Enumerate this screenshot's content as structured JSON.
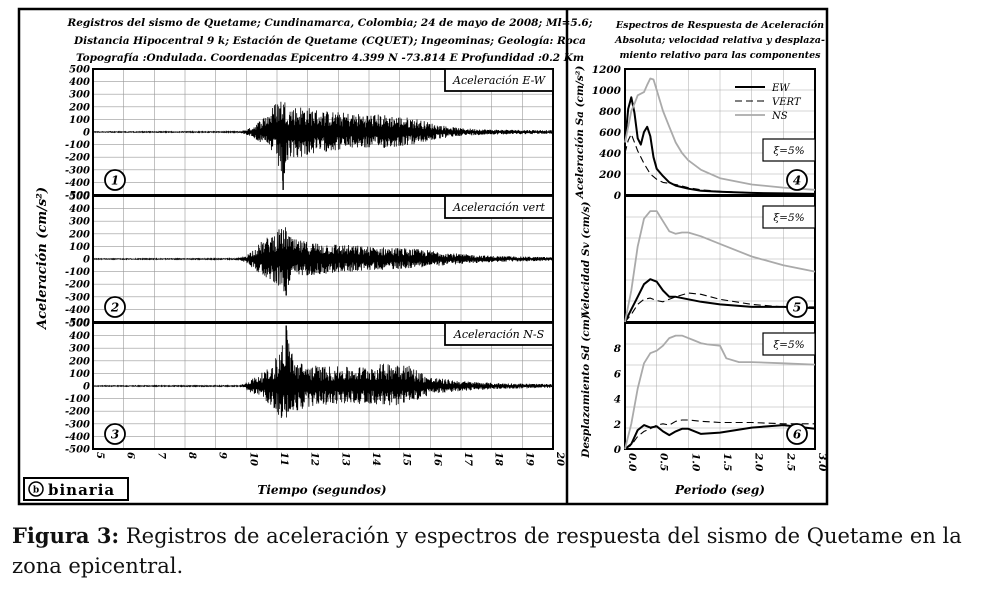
{
  "figure": {
    "left_title": [
      "Registros del sismo de Quetame; Cundinamarca, Colombia; 24 de mayo de 2008; Ml=5.6;",
      "Distancia Hipocentral 9 k; Estación de Quetame (CQUET); Ingeominas; Geología: Roca",
      "Topografía :Ondulada. Coordenadas Epicentro 4.399 N -73.814 E  Profundidad :0.2 Km"
    ],
    "right_title": [
      "Espectros de Respuesta de Aceleración",
      "Absoluta; velocidad relativa y desplaza-",
      "miento relativo para las componentes"
    ],
    "logo_text": "binaria",
    "xlabel_left": "Tiempo (segundos)",
    "ylabel_left": "Aceleración (cm/s²)",
    "xlabel_right": "Periodo (seg)"
  },
  "caption": {
    "label": "Figura 3:",
    "text": " Registros de aceleración y espectros de respuesta del sismo de Quetame en la zona epicentral."
  },
  "chart_data": [
    {
      "type": "line",
      "panel": "1",
      "name": "Aceleración E-W",
      "xlabel": "Tiempo (segundos)",
      "ylabel": "Aceleración (cm/s²)",
      "xlim": [
        5,
        20
      ],
      "ylim": [
        -500,
        500
      ],
      "xticks": [
        5,
        6,
        7,
        8,
        9,
        10,
        11,
        12,
        13,
        14,
        15,
        16,
        17,
        18,
        19,
        20
      ],
      "yticks": [
        500,
        400,
        300,
        200,
        100,
        0,
        -100,
        -200,
        -300,
        -400,
        -500
      ],
      "grid": true,
      "envelope": {
        "t": [
          5,
          9.8,
          10.2,
          10.8,
          11.0,
          11.2,
          11.4,
          11.8,
          12.5,
          13.5,
          14.5,
          15.5,
          16.2,
          17,
          18,
          20
        ],
        "pos": [
          3,
          4,
          40,
          180,
          260,
          280,
          200,
          210,
          170,
          150,
          140,
          110,
          60,
          30,
          20,
          15
        ],
        "neg": [
          3,
          4,
          40,
          150,
          230,
          460,
          220,
          200,
          160,
          130,
          130,
          100,
          60,
          30,
          20,
          15
        ]
      }
    },
    {
      "type": "line",
      "panel": "2",
      "name": "Aceleración vert",
      "xlabel": "Tiempo (segundos)",
      "ylabel": "Aceleración (cm/s²)",
      "xlim": [
        5,
        20
      ],
      "ylim": [
        -500,
        500
      ],
      "xticks": [
        5,
        6,
        7,
        8,
        9,
        10,
        11,
        12,
        13,
        14,
        15,
        16,
        17,
        18,
        19,
        20
      ],
      "yticks": [
        500,
        400,
        300,
        200,
        100,
        0,
        -100,
        -200,
        -300,
        -400,
        -500
      ],
      "grid": true,
      "envelope": {
        "t": [
          5,
          9.7,
          10.0,
          10.5,
          11.0,
          11.3,
          11.5,
          12.0,
          13.0,
          14.0,
          15.0,
          16.0,
          17.0,
          18.0,
          20
        ],
        "pos": [
          3,
          4,
          30,
          140,
          230,
          260,
          160,
          140,
          120,
          100,
          90,
          70,
          40,
          25,
          15
        ],
        "neg": [
          3,
          4,
          30,
          130,
          200,
          290,
          150,
          130,
          110,
          90,
          80,
          60,
          40,
          25,
          15
        ]
      }
    },
    {
      "type": "line",
      "panel": "3",
      "name": "Aceleración N-S",
      "xlabel": "Tiempo (segundos)",
      "ylabel": "Aceleración (cm/s²)",
      "xlim": [
        5,
        20
      ],
      "ylim": [
        -500,
        500
      ],
      "xticks": [
        5,
        6,
        7,
        8,
        9,
        10,
        11,
        12,
        13,
        14,
        15,
        16,
        17,
        18,
        19,
        20
      ],
      "yticks": [
        500,
        400,
        300,
        200,
        100,
        0,
        -100,
        -200,
        -300,
        -400,
        -500
      ],
      "grid": true,
      "envelope": {
        "t": [
          5,
          9.8,
          10.2,
          10.8,
          11.1,
          11.3,
          11.6,
          12.0,
          12.5,
          13.5,
          14.5,
          15.0,
          15.5,
          16.0,
          17.0,
          18.0,
          20
        ],
        "pos": [
          3,
          4,
          60,
          150,
          300,
          480,
          200,
          170,
          160,
          150,
          180,
          210,
          140,
          70,
          40,
          25,
          15
        ],
        "neg": [
          3,
          4,
          60,
          150,
          250,
          280,
          210,
          170,
          150,
          140,
          150,
          160,
          120,
          70,
          40,
          25,
          15
        ]
      }
    },
    {
      "type": "line",
      "panel": "4",
      "ylabel": "Aceleración  Sa (cm/s²)",
      "annotation": "ξ=5%",
      "xlim": [
        0,
        3
      ],
      "ylim": [
        0,
        1200
      ],
      "yticks": [
        0,
        200,
        400,
        600,
        800,
        1000,
        1200
      ],
      "grid": true,
      "legend": "top-right",
      "series": [
        {
          "name": "EW",
          "style": "solid-dark",
          "x": [
            0,
            0.05,
            0.1,
            0.15,
            0.2,
            0.25,
            0.3,
            0.35,
            0.4,
            0.45,
            0.5,
            0.6,
            0.7,
            0.8,
            1.0,
            1.2,
            1.5,
            2.0,
            2.5,
            3.0
          ],
          "y": [
            500,
            820,
            930,
            780,
            540,
            480,
            600,
            650,
            560,
            360,
            250,
            180,
            120,
            90,
            60,
            40,
            30,
            20,
            15,
            10
          ]
        },
        {
          "name": "VERT",
          "style": "dashed",
          "x": [
            0,
            0.05,
            0.1,
            0.15,
            0.2,
            0.3,
            0.4,
            0.5,
            0.6,
            0.7,
            0.8,
            1.0,
            1.2,
            1.5,
            2.0,
            2.5,
            3.0
          ],
          "y": [
            400,
            520,
            580,
            500,
            420,
            300,
            200,
            150,
            120,
            110,
            100,
            70,
            50,
            35,
            20,
            15,
            10
          ]
        },
        {
          "name": "NS",
          "style": "solid-gray",
          "x": [
            0,
            0.05,
            0.1,
            0.15,
            0.2,
            0.3,
            0.35,
            0.4,
            0.45,
            0.5,
            0.6,
            0.7,
            0.8,
            0.9,
            1.0,
            1.2,
            1.5,
            2.0,
            2.5,
            3.0
          ],
          "y": [
            500,
            650,
            800,
            870,
            950,
            980,
            1050,
            1110,
            1100,
            1000,
            800,
            650,
            500,
            400,
            330,
            240,
            160,
            100,
            70,
            50
          ]
        }
      ]
    },
    {
      "type": "line",
      "panel": "5",
      "ylabel": "Velocidad  Sv (cm/s)",
      "annotation": "ξ=5%",
      "xlim": [
        0,
        3
      ],
      "ylim": [
        0,
        100
      ],
      "grid": true,
      "series": [
        {
          "name": "EW",
          "style": "solid-dark",
          "x": [
            0,
            0.1,
            0.2,
            0.3,
            0.4,
            0.5,
            0.6,
            0.7,
            0.8,
            1.0,
            1.2,
            1.5,
            2.0,
            2.5,
            3.0
          ],
          "y": [
            0,
            10,
            20,
            30,
            34,
            32,
            25,
            20,
            20,
            18,
            16,
            14,
            12,
            12,
            11
          ]
        },
        {
          "name": "VERT",
          "style": "dashed",
          "x": [
            0,
            0.1,
            0.2,
            0.3,
            0.4,
            0.5,
            0.6,
            0.7,
            0.8,
            1.0,
            1.2,
            1.5,
            2.0,
            2.5,
            3.0
          ],
          "y": [
            0,
            6,
            14,
            18,
            19,
            17,
            16,
            18,
            20,
            23,
            22,
            18,
            14,
            12,
            12
          ]
        },
        {
          "name": "NS",
          "style": "solid-gray",
          "x": [
            0,
            0.1,
            0.2,
            0.3,
            0.4,
            0.5,
            0.6,
            0.7,
            0.8,
            0.9,
            1.0,
            1.2,
            1.5,
            2.0,
            2.5,
            3.0
          ],
          "y": [
            0,
            25,
            60,
            82,
            88,
            88,
            80,
            72,
            70,
            71,
            71,
            68,
            62,
            52,
            45,
            40
          ]
        }
      ]
    },
    {
      "type": "line",
      "panel": "6",
      "ylabel": "Desplazamiento  Sd (cm)",
      "annotation": "ξ=5%",
      "xlim": [
        0,
        3
      ],
      "ylim": [
        0,
        10
      ],
      "xticks": [
        0.0,
        0.5,
        1.0,
        1.5,
        2.0,
        2.5,
        3.0
      ],
      "yticks": [
        0,
        2,
        4,
        6,
        8
      ],
      "xlabel": "Periodo (seg)",
      "grid": true,
      "series": [
        {
          "name": "EW",
          "style": "solid-dark",
          "x": [
            0,
            0.1,
            0.2,
            0.3,
            0.4,
            0.5,
            0.6,
            0.7,
            0.8,
            0.9,
            1.0,
            1.2,
            1.5,
            2.0,
            2.5,
            3.0
          ],
          "y": [
            0,
            0.4,
            1.5,
            1.9,
            1.7,
            1.8,
            1.4,
            1.1,
            1.4,
            1.6,
            1.6,
            1.2,
            1.3,
            1.7,
            1.9,
            1.6
          ]
        },
        {
          "name": "VERT",
          "style": "dashed",
          "x": [
            0,
            0.1,
            0.2,
            0.3,
            0.4,
            0.5,
            0.6,
            0.7,
            0.8,
            0.9,
            1.0,
            1.2,
            1.5,
            2.0,
            2.5,
            3.0
          ],
          "y": [
            0,
            0.3,
            1.0,
            1.4,
            1.6,
            1.9,
            2.0,
            1.9,
            2.2,
            2.3,
            2.3,
            2.2,
            2.1,
            2.1,
            2.0,
            2.0
          ]
        },
        {
          "name": "NS",
          "style": "solid-gray",
          "x": [
            0,
            0.1,
            0.2,
            0.3,
            0.4,
            0.5,
            0.6,
            0.7,
            0.8,
            0.9,
            1.0,
            1.1,
            1.2,
            1.3,
            1.5,
            1.6,
            1.8,
            2.0,
            2.5,
            3.0
          ],
          "y": [
            0,
            2.0,
            4.8,
            6.8,
            7.6,
            7.8,
            8.2,
            8.8,
            9.0,
            9.0,
            8.8,
            8.6,
            8.4,
            8.3,
            8.2,
            7.2,
            6.9,
            6.9,
            6.8,
            6.7
          ]
        }
      ]
    }
  ]
}
